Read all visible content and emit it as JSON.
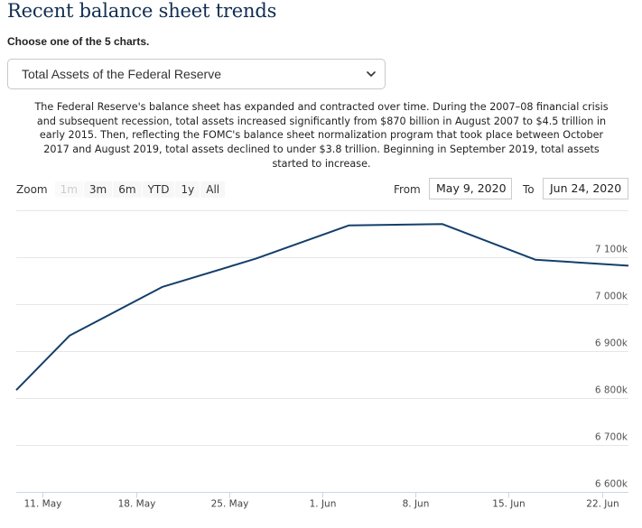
{
  "page": {
    "title": "Recent balance sheet trends",
    "choose_label": "Choose one of the 5 charts."
  },
  "selector": {
    "selected": "Total Assets of the Federal Reserve",
    "icon": "chevron-down-icon"
  },
  "description": "The Federal Reserve's balance sheet has expanded and contracted over time. During the 2007–08 financial crisis and subsequent recession, total assets increased significantly from $870 billion in August 2007 to $4.5 trillion in early 2015. Then, reflecting the FOMC's balance sheet normalization program that took place between October 2017 and August 2019, total assets declined to under $3.8 trillion. Beginning in September 2019, total assets started to increase.",
  "zoom": {
    "label": "Zoom",
    "buttons": [
      {
        "label": "1m",
        "disabled": true
      },
      {
        "label": "3m",
        "disabled": false
      },
      {
        "label": "6m",
        "disabled": false
      },
      {
        "label": "YTD",
        "disabled": false
      },
      {
        "label": "1y",
        "disabled": false
      },
      {
        "label": "All",
        "disabled": false
      }
    ]
  },
  "range": {
    "from_label": "From",
    "from_value": "May 9, 2020",
    "to_label": "To",
    "to_value": "Jun 24, 2020"
  },
  "colors": {
    "line": "#133f6b",
    "title": "#112e51"
  },
  "chart_data": {
    "type": "line",
    "title": "",
    "xlabel": "",
    "ylabel": "",
    "x_range": [
      "2020-05-09",
      "2020-06-24"
    ],
    "ylim": [
      6600,
      7200
    ],
    "y_ticks": [
      6600,
      6700,
      6800,
      6900,
      7000,
      7100
    ],
    "y_tick_labels": [
      "6 600k",
      "6 700k",
      "6 800k",
      "6 900k",
      "7 000k",
      "7 100k"
    ],
    "x_ticks": [
      "2020-05-11",
      "2020-05-18",
      "2020-05-25",
      "2020-06-01",
      "2020-06-08",
      "2020-06-15",
      "2020-06-22"
    ],
    "x_tick_labels": [
      "11. May",
      "18. May",
      "25. May",
      "1. Jun",
      "8. Jun",
      "15. Jun",
      "22. Jun"
    ],
    "grid": true,
    "legend": "none",
    "series": [
      {
        "x": [
          "2020-05-09",
          "2020-05-13",
          "2020-05-20",
          "2020-05-27",
          "2020-06-03",
          "2020-06-10",
          "2020-06-17",
          "2020-06-24"
        ],
        "values": [
          6817,
          6933,
          7037,
          7097,
          7168,
          7171,
          7095,
          7082
        ]
      }
    ]
  }
}
